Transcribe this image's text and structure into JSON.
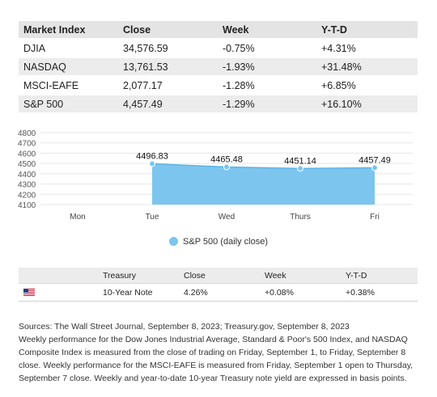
{
  "index_table": {
    "headers": [
      "Market Index",
      "Close",
      "Week",
      "Y-T-D"
    ],
    "rows": [
      [
        "DJIA",
        "34,576.59",
        "-0.75%",
        "+4.31%"
      ],
      [
        "NASDAQ",
        "13,761.53",
        "-1.93%",
        "+31.48%"
      ],
      [
        "MSCI-EAFE",
        "2,077.17",
        "-1.28%",
        "+6.85%"
      ],
      [
        "S&P 500",
        "4,457.49",
        "-1.29%",
        "+16.10%"
      ]
    ]
  },
  "chart_data": {
    "type": "area",
    "categories": [
      "Mon",
      "Tue",
      "Wed",
      "Thurs",
      "Fri"
    ],
    "series": [
      {
        "name": "S&P 500 (daily close)",
        "values": [
          null,
          4496.83,
          4465.48,
          4451.14,
          4457.49
        ],
        "labels": [
          "",
          "4496.83",
          "4465.48",
          "4451.14",
          "4457.49"
        ]
      }
    ],
    "yticks": [
      "4800",
      "4700",
      "4600",
      "4500",
      "4400",
      "4300",
      "4200",
      "4100"
    ],
    "ylim": [
      4100,
      4800
    ],
    "grid": true,
    "legend": "bottom",
    "color": "#7cc5ee",
    "line_color": "#5bb4e5"
  },
  "legend": {
    "label": "S&P 500 (daily close)"
  },
  "treasury_table": {
    "headers": [
      "",
      "Treasury",
      "Close",
      "Week",
      "Y-T-D"
    ],
    "row": {
      "flag_icon": "us-flag-icon",
      "name": "10-Year Note",
      "close": "4.26%",
      "week": "+0.08%",
      "ytd": "+0.38%"
    }
  },
  "notes": {
    "line1": "Sources: The Wall Street Journal, September 8, 2023; Treasury.gov, September 8, 2023",
    "line2": "Weekly performance for the Dow Jones Industrial Average, Standard & Poor's 500 Index, and NASDAQ Composite Index is measured from the close of trading on Friday, September 1, to Friday, September 8 close. Weekly performance for the MSCI-EAFE is measured from Friday, September 1 open to Thursday, September 7 close. Weekly and year-to-date 10-year Treasury note yield are expressed in basis points."
  }
}
